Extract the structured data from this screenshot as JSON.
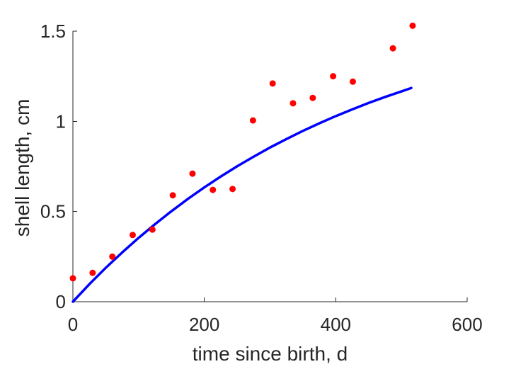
{
  "chart_data": {
    "type": "scatter",
    "xlabel": "time since birth, d",
    "ylabel": "shell length, cm",
    "xlim": [
      0,
      600
    ],
    "ylim": [
      0,
      1.5
    ],
    "xticks": [
      0,
      200,
      400,
      600
    ],
    "xtick_labels": [
      "0",
      "200",
      "400",
      "600"
    ],
    "yticks": [
      0,
      0.5,
      1,
      1.5
    ],
    "ytick_labels": [
      "0",
      "0.5",
      "1",
      "1.5"
    ],
    "grid": false,
    "series": [
      {
        "type": "scatter",
        "color": "#ff0000",
        "x": [
          0,
          30,
          60,
          91,
          121,
          152,
          182,
          213,
          243,
          274,
          304,
          335,
          365,
          396,
          426,
          487,
          517
        ],
        "y": [
          0.13,
          0.16,
          0.25,
          0.37,
          0.4,
          0.59,
          0.71,
          0.62,
          0.625,
          1.005,
          1.21,
          1.1,
          1.13,
          1.25,
          1.22,
          1.405,
          1.53
        ]
      },
      {
        "type": "line",
        "color": "#0000ff",
        "x": [
          0,
          25,
          50,
          75,
          100,
          125,
          150,
          175,
          200,
          225,
          250,
          275,
          300,
          325,
          350,
          375,
          400,
          425,
          450,
          475,
          500,
          515
        ],
        "y": [
          0,
          0.097,
          0.188,
          0.273,
          0.354,
          0.43,
          0.502,
          0.57,
          0.634,
          0.694,
          0.751,
          0.804,
          0.855,
          0.902,
          0.947,
          0.989,
          1.029,
          1.066,
          1.102,
          1.135,
          1.166,
          1.185
        ]
      }
    ]
  }
}
